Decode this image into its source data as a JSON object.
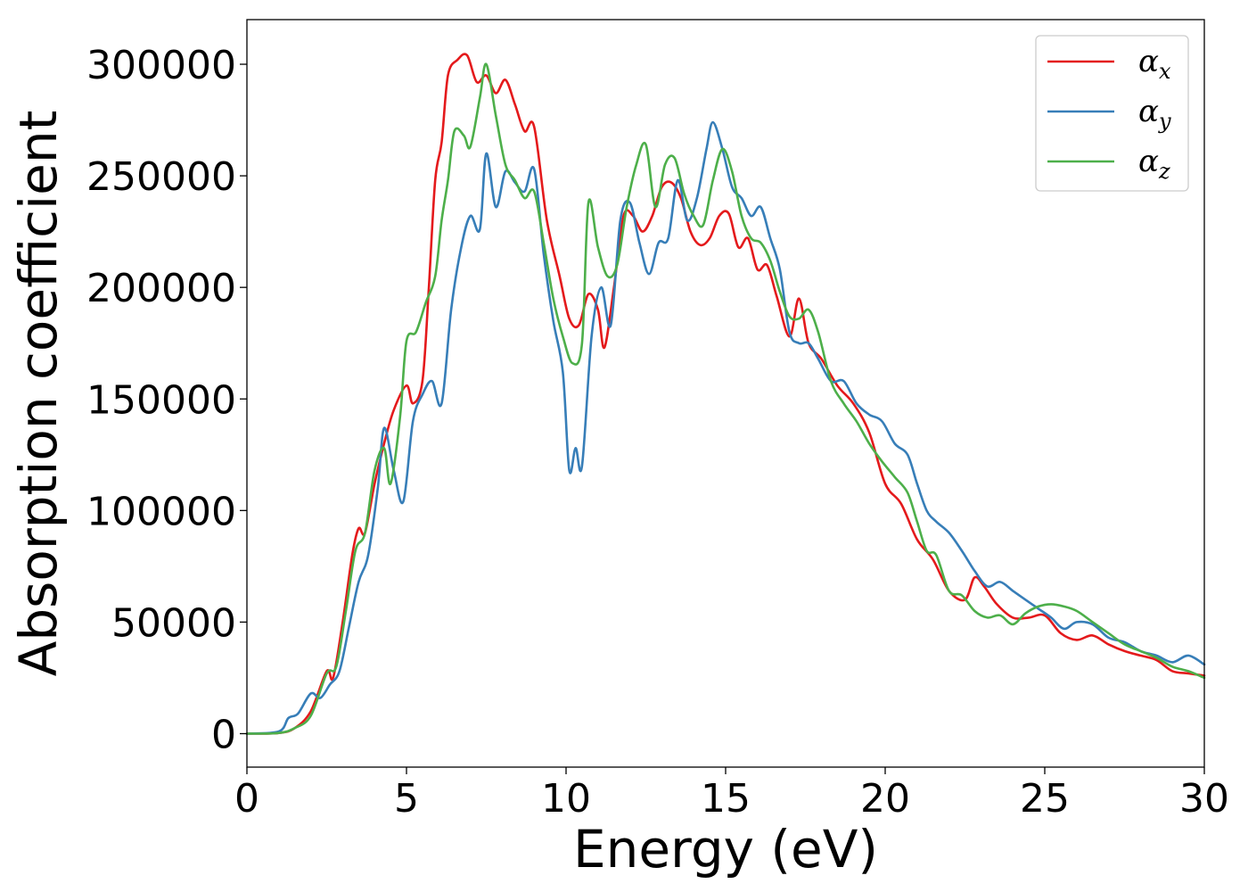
{
  "chart_data": {
    "type": "line",
    "title": "",
    "xlabel": "Energy (eV)",
    "ylabel": "Absorption coefficient",
    "xlim": [
      0,
      30
    ],
    "ylim": [
      -15000,
      320000
    ],
    "xticks": [
      0,
      5,
      10,
      15,
      20,
      25,
      30
    ],
    "yticks": [
      0,
      50000,
      100000,
      150000,
      200000,
      250000,
      300000
    ],
    "grid": false,
    "legend_position": "top-right",
    "series": [
      {
        "name": "α_x",
        "symbol": "α",
        "subscript": "x",
        "color": "#e41a1c",
        "points": [
          [
            0,
            0
          ],
          [
            1.0,
            300
          ],
          [
            1.5,
            2500
          ],
          [
            2.0,
            10000
          ],
          [
            2.5,
            28000
          ],
          [
            2.7,
            25000
          ],
          [
            3.0,
            50000
          ],
          [
            3.3,
            80000
          ],
          [
            3.5,
            92000
          ],
          [
            3.7,
            90000
          ],
          [
            4.0,
            112000
          ],
          [
            4.3,
            130000
          ],
          [
            4.6,
            145000
          ],
          [
            5.0,
            156000
          ],
          [
            5.2,
            148000
          ],
          [
            5.5,
            158000
          ],
          [
            5.7,
            200000
          ],
          [
            5.9,
            248000
          ],
          [
            6.1,
            265000
          ],
          [
            6.3,
            295000
          ],
          [
            6.6,
            302000
          ],
          [
            6.9,
            304000
          ],
          [
            7.2,
            292000
          ],
          [
            7.5,
            295000
          ],
          [
            7.8,
            287000
          ],
          [
            8.1,
            293000
          ],
          [
            8.4,
            282000
          ],
          [
            8.7,
            270000
          ],
          [
            9.0,
            272000
          ],
          [
            9.4,
            230000
          ],
          [
            9.8,
            205000
          ],
          [
            10.1,
            186000
          ],
          [
            10.4,
            183000
          ],
          [
            10.7,
            197000
          ],
          [
            11.0,
            190000
          ],
          [
            11.2,
            173000
          ],
          [
            11.5,
            200000
          ],
          [
            11.8,
            232000
          ],
          [
            12.1,
            232000
          ],
          [
            12.4,
            225000
          ],
          [
            12.7,
            232000
          ],
          [
            13.0,
            245000
          ],
          [
            13.3,
            247000
          ],
          [
            13.6,
            240000
          ],
          [
            13.9,
            225000
          ],
          [
            14.2,
            219000
          ],
          [
            14.5,
            222000
          ],
          [
            14.8,
            232000
          ],
          [
            15.1,
            233000
          ],
          [
            15.4,
            218000
          ],
          [
            15.7,
            222000
          ],
          [
            16.0,
            208000
          ],
          [
            16.3,
            210000
          ],
          [
            16.6,
            196000
          ],
          [
            17.0,
            178000
          ],
          [
            17.3,
            195000
          ],
          [
            17.6,
            175000
          ],
          [
            18.0,
            168000
          ],
          [
            18.5,
            156000
          ],
          [
            19.0,
            148000
          ],
          [
            19.5,
            135000
          ],
          [
            20.0,
            112000
          ],
          [
            20.5,
            103000
          ],
          [
            21.0,
            87000
          ],
          [
            21.5,
            78000
          ],
          [
            22.0,
            64000
          ],
          [
            22.5,
            60000
          ],
          [
            22.8,
            70000
          ],
          [
            23.1,
            66000
          ],
          [
            23.5,
            58000
          ],
          [
            24.0,
            52000
          ],
          [
            24.5,
            52000
          ],
          [
            25.0,
            53000
          ],
          [
            25.5,
            45000
          ],
          [
            26.0,
            42000
          ],
          [
            26.5,
            44000
          ],
          [
            27.0,
            40000
          ],
          [
            27.5,
            37000
          ],
          [
            28.0,
            35000
          ],
          [
            28.5,
            33000
          ],
          [
            29.0,
            28000
          ],
          [
            29.5,
            27000
          ],
          [
            30.0,
            26000
          ]
        ]
      },
      {
        "name": "α_y",
        "symbol": "α",
        "subscript": "y",
        "color": "#377eb8",
        "points": [
          [
            0,
            0
          ],
          [
            1.0,
            1000
          ],
          [
            1.3,
            7000
          ],
          [
            1.6,
            9000
          ],
          [
            2.0,
            18000
          ],
          [
            2.3,
            16000
          ],
          [
            2.6,
            22000
          ],
          [
            2.9,
            28000
          ],
          [
            3.2,
            48000
          ],
          [
            3.5,
            68000
          ],
          [
            3.8,
            80000
          ],
          [
            4.1,
            110000
          ],
          [
            4.3,
            137000
          ],
          [
            4.6,
            118000
          ],
          [
            4.9,
            104000
          ],
          [
            5.2,
            140000
          ],
          [
            5.5,
            152000
          ],
          [
            5.8,
            158000
          ],
          [
            6.1,
            148000
          ],
          [
            6.4,
            190000
          ],
          [
            6.7,
            217000
          ],
          [
            7.0,
            232000
          ],
          [
            7.3,
            226000
          ],
          [
            7.5,
            260000
          ],
          [
            7.8,
            236000
          ],
          [
            8.1,
            252000
          ],
          [
            8.4,
            247000
          ],
          [
            8.7,
            243000
          ],
          [
            9.0,
            253000
          ],
          [
            9.3,
            215000
          ],
          [
            9.6,
            185000
          ],
          [
            9.9,
            162000
          ],
          [
            10.1,
            118000
          ],
          [
            10.3,
            128000
          ],
          [
            10.5,
            120000
          ],
          [
            10.8,
            178000
          ],
          [
            11.1,
            200000
          ],
          [
            11.4,
            183000
          ],
          [
            11.7,
            230000
          ],
          [
            12.0,
            238000
          ],
          [
            12.3,
            220000
          ],
          [
            12.6,
            206000
          ],
          [
            12.9,
            220000
          ],
          [
            13.2,
            222000
          ],
          [
            13.5,
            248000
          ],
          [
            13.8,
            230000
          ],
          [
            14.1,
            240000
          ],
          [
            14.4,
            262000
          ],
          [
            14.6,
            274000
          ],
          [
            14.9,
            262000
          ],
          [
            15.2,
            245000
          ],
          [
            15.5,
            240000
          ],
          [
            15.8,
            232000
          ],
          [
            16.1,
            236000
          ],
          [
            16.4,
            222000
          ],
          [
            16.7,
            208000
          ],
          [
            17.0,
            180000
          ],
          [
            17.3,
            175000
          ],
          [
            17.6,
            175000
          ],
          [
            17.9,
            168000
          ],
          [
            18.3,
            158000
          ],
          [
            18.7,
            158000
          ],
          [
            19.1,
            148000
          ],
          [
            19.5,
            143000
          ],
          [
            19.9,
            140000
          ],
          [
            20.3,
            130000
          ],
          [
            20.7,
            125000
          ],
          [
            21.0,
            112000
          ],
          [
            21.3,
            100000
          ],
          [
            21.6,
            95000
          ],
          [
            22.0,
            90000
          ],
          [
            22.4,
            82000
          ],
          [
            22.8,
            73000
          ],
          [
            23.2,
            66000
          ],
          [
            23.6,
            68000
          ],
          [
            24.0,
            64000
          ],
          [
            24.4,
            60000
          ],
          [
            24.8,
            56000
          ],
          [
            25.2,
            52000
          ],
          [
            25.6,
            47000
          ],
          [
            26.0,
            50000
          ],
          [
            26.5,
            49000
          ],
          [
            27.0,
            43000
          ],
          [
            27.5,
            41000
          ],
          [
            28.0,
            37000
          ],
          [
            28.5,
            35000
          ],
          [
            29.0,
            32000
          ],
          [
            29.5,
            35000
          ],
          [
            30.0,
            31000
          ]
        ]
      },
      {
        "name": "α_z",
        "symbol": "α",
        "subscript": "z",
        "color": "#4daf4a",
        "points": [
          [
            0,
            0
          ],
          [
            1.0,
            300
          ],
          [
            1.5,
            2500
          ],
          [
            2.0,
            8000
          ],
          [
            2.5,
            27000
          ],
          [
            2.8,
            30000
          ],
          [
            3.1,
            55000
          ],
          [
            3.4,
            82000
          ],
          [
            3.7,
            90000
          ],
          [
            4.0,
            118000
          ],
          [
            4.3,
            128000
          ],
          [
            4.5,
            112000
          ],
          [
            4.8,
            142000
          ],
          [
            5.0,
            176000
          ],
          [
            5.3,
            180000
          ],
          [
            5.6,
            193000
          ],
          [
            5.9,
            205000
          ],
          [
            6.1,
            230000
          ],
          [
            6.3,
            248000
          ],
          [
            6.5,
            270000
          ],
          [
            6.8,
            268000
          ],
          [
            7.0,
            263000
          ],
          [
            7.3,
            285000
          ],
          [
            7.5,
            300000
          ],
          [
            7.8,
            277000
          ],
          [
            8.1,
            255000
          ],
          [
            8.4,
            248000
          ],
          [
            8.7,
            240000
          ],
          [
            9.0,
            243000
          ],
          [
            9.3,
            220000
          ],
          [
            9.6,
            195000
          ],
          [
            9.9,
            178000
          ],
          [
            10.2,
            166000
          ],
          [
            10.5,
            175000
          ],
          [
            10.7,
            238000
          ],
          [
            11.0,
            218000
          ],
          [
            11.3,
            205000
          ],
          [
            11.6,
            210000
          ],
          [
            11.9,
            236000
          ],
          [
            12.2,
            255000
          ],
          [
            12.5,
            264000
          ],
          [
            12.8,
            236000
          ],
          [
            13.1,
            255000
          ],
          [
            13.4,
            258000
          ],
          [
            13.7,
            242000
          ],
          [
            14.0,
            232000
          ],
          [
            14.3,
            228000
          ],
          [
            14.6,
            248000
          ],
          [
            14.9,
            262000
          ],
          [
            15.2,
            252000
          ],
          [
            15.5,
            232000
          ],
          [
            15.8,
            222000
          ],
          [
            16.1,
            220000
          ],
          [
            16.4,
            212000
          ],
          [
            16.7,
            198000
          ],
          [
            17.0,
            187000
          ],
          [
            17.3,
            186000
          ],
          [
            17.6,
            190000
          ],
          [
            17.9,
            180000
          ],
          [
            18.3,
            158000
          ],
          [
            18.7,
            148000
          ],
          [
            19.1,
            140000
          ],
          [
            19.5,
            130000
          ],
          [
            19.9,
            122000
          ],
          [
            20.3,
            115000
          ],
          [
            20.7,
            108000
          ],
          [
            21.0,
            95000
          ],
          [
            21.3,
            82000
          ],
          [
            21.6,
            80000
          ],
          [
            22.0,
            64000
          ],
          [
            22.4,
            62000
          ],
          [
            22.8,
            55000
          ],
          [
            23.2,
            52000
          ],
          [
            23.6,
            53000
          ],
          [
            24.0,
            49000
          ],
          [
            24.4,
            54000
          ],
          [
            24.8,
            57000
          ],
          [
            25.2,
            58000
          ],
          [
            25.6,
            57000
          ],
          [
            26.0,
            55000
          ],
          [
            26.5,
            50000
          ],
          [
            27.0,
            45000
          ],
          [
            27.5,
            40000
          ],
          [
            28.0,
            37000
          ],
          [
            28.5,
            34000
          ],
          [
            29.0,
            30000
          ],
          [
            29.5,
            28000
          ],
          [
            30.0,
            25000
          ]
        ]
      }
    ]
  }
}
